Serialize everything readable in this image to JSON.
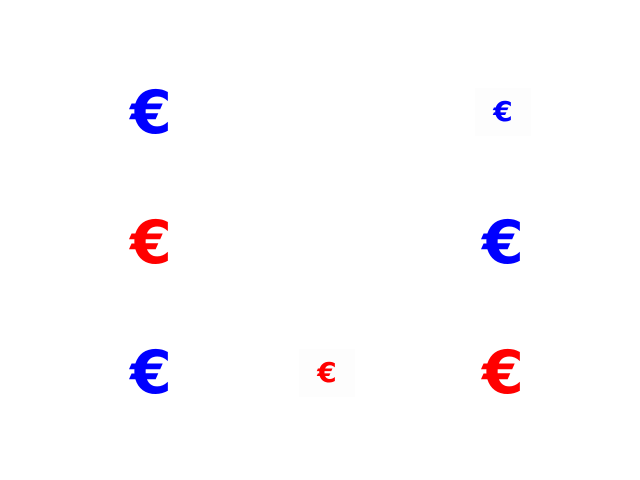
{
  "colors": {
    "blue": "#0000ff",
    "red": "#ff0000",
    "background": "#ffffff"
  },
  "symbols": [
    {
      "glyph": "€",
      "color": "blue",
      "size": "large"
    },
    {
      "glyph": "€",
      "color": "blue",
      "size": "small"
    },
    {
      "glyph": "€",
      "color": "red",
      "size": "large"
    },
    {
      "glyph": "€",
      "color": "blue",
      "size": "large"
    },
    {
      "glyph": "€",
      "color": "blue",
      "size": "large"
    },
    {
      "glyph": "€",
      "color": "red",
      "size": "small"
    },
    {
      "glyph": "€",
      "color": "red",
      "size": "large"
    }
  ]
}
